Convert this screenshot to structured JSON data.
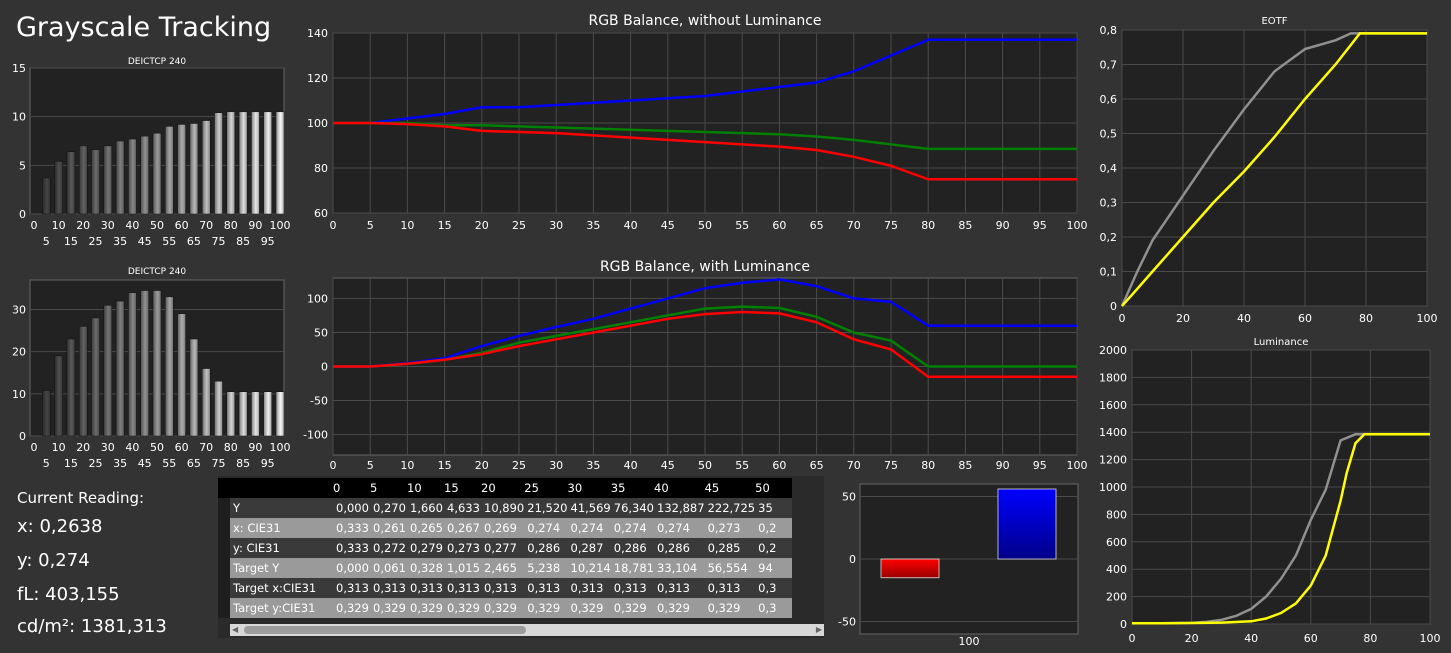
{
  "page_title": "Grayscale Tracking",
  "current_reading": {
    "label": "Current Reading:",
    "x": "x: 0,2638",
    "y": "y: 0,274",
    "fl": "fL: 403,155",
    "cdm2": "cd/m²: 1381,313"
  },
  "colors": {
    "red": "#ff0000",
    "green": "#008000",
    "blue": "#0000ff",
    "yellow": "#ffff00",
    "gray": "#909090",
    "plot_bg": "#222222",
    "grid": "#4a4a4a"
  },
  "chart_data": [
    {
      "id": "deictcp-top",
      "type": "bar",
      "title": "DEICTCP 240",
      "x": [
        5,
        10,
        15,
        20,
        25,
        30,
        35,
        40,
        45,
        50,
        55,
        60,
        65,
        70,
        75,
        80,
        85,
        90,
        95,
        100
      ],
      "values": [
        3.7,
        5.4,
        6.4,
        7.0,
        6.6,
        7.0,
        7.5,
        7.7,
        8.0,
        8.3,
        9.0,
        9.2,
        9.3,
        9.6,
        10.4,
        10.5,
        10.5,
        10.5,
        10.5,
        10.5
      ],
      "ylim": [
        0,
        15
      ],
      "yticks": [
        0,
        5,
        10,
        15
      ],
      "xticks_top": [
        "0",
        "10",
        "20",
        "30",
        "40",
        "50",
        "60",
        "70",
        "80",
        "90",
        "100"
      ],
      "xticks_bottom": [
        "5",
        "15",
        "25",
        "35",
        "45",
        "55",
        "65",
        "75",
        "85",
        "95"
      ]
    },
    {
      "id": "deictcp-bottom",
      "type": "bar",
      "title": "DEICTCP 240",
      "x": [
        5,
        10,
        15,
        20,
        25,
        30,
        35,
        40,
        45,
        50,
        55,
        60,
        65,
        70,
        75,
        80,
        85,
        90,
        95,
        100
      ],
      "values": [
        10.8,
        19,
        23,
        26,
        28,
        31,
        32,
        34,
        34.5,
        34.5,
        33,
        29,
        23,
        16,
        13,
        10.5,
        10.5,
        10.5,
        10.5,
        10.5
      ],
      "ylim": [
        0,
        37
      ],
      "yticks": [
        0,
        10,
        20,
        30
      ],
      "xticks_top": [
        "0",
        "10",
        "20",
        "30",
        "40",
        "50",
        "60",
        "70",
        "80",
        "90",
        "100"
      ],
      "xticks_bottom": [
        "5",
        "15",
        "25",
        "35",
        "45",
        "55",
        "65",
        "75",
        "85",
        "95"
      ]
    },
    {
      "id": "rgb-balance-without",
      "type": "line",
      "title": "RGB Balance, without Luminance",
      "x": [
        0,
        5,
        10,
        15,
        20,
        25,
        30,
        35,
        40,
        45,
        50,
        55,
        60,
        65,
        70,
        75,
        80,
        85,
        90,
        95,
        100
      ],
      "xlim": [
        0,
        100
      ],
      "ylim": [
        60,
        140
      ],
      "yticks": [
        60,
        80,
        100,
        120,
        140
      ],
      "xticks": [
        0,
        5,
        10,
        15,
        20,
        25,
        30,
        35,
        40,
        45,
        50,
        55,
        60,
        65,
        70,
        75,
        80,
        85,
        90,
        95,
        100
      ],
      "series": [
        {
          "color": "#0000ff",
          "values": [
            100,
            100,
            102,
            104,
            107,
            107,
            108,
            109,
            110,
            111,
            112,
            114,
            116,
            118,
            123,
            130,
            137,
            137,
            137,
            137,
            137
          ]
        },
        {
          "color": "#008000",
          "values": [
            100,
            100,
            100,
            99,
            99,
            98.5,
            98,
            97.5,
            97,
            96.5,
            96,
            95.5,
            95,
            94,
            92.5,
            90.5,
            88.5,
            88.5,
            88.5,
            88.5,
            88.5
          ]
        },
        {
          "color": "#ff0000",
          "values": [
            100,
            100,
            99.5,
            98.5,
            96.5,
            96,
            95.5,
            94.5,
            93.5,
            92.5,
            91.5,
            90.5,
            89.5,
            88,
            85,
            81,
            75,
            75,
            75,
            75,
            75
          ]
        }
      ]
    },
    {
      "id": "rgb-balance-with",
      "type": "line",
      "title": "RGB Balance, with Luminance",
      "x": [
        0,
        5,
        10,
        15,
        20,
        25,
        30,
        35,
        40,
        45,
        50,
        55,
        60,
        65,
        70,
        75,
        80,
        85,
        90,
        95,
        100
      ],
      "xlim": [
        0,
        100
      ],
      "ylim": [
        -130,
        130
      ],
      "yticks": [
        -100,
        -50,
        0,
        50,
        100
      ],
      "xticks": [
        0,
        5,
        10,
        15,
        20,
        25,
        30,
        35,
        40,
        45,
        50,
        55,
        60,
        65,
        70,
        75,
        80,
        85,
        90,
        95,
        100
      ],
      "series": [
        {
          "color": "#0000ff",
          "values": [
            0,
            0,
            5,
            12,
            30,
            45,
            58,
            70,
            85,
            100,
            115,
            123,
            128,
            118,
            100,
            95,
            60,
            60,
            60,
            60,
            60
          ]
        },
        {
          "color": "#008000",
          "values": [
            0,
            0,
            4,
            10,
            20,
            35,
            45,
            55,
            65,
            75,
            85,
            88,
            86,
            73,
            50,
            38,
            0,
            0,
            0,
            0,
            0
          ]
        },
        {
          "color": "#ff0000",
          "values": [
            0,
            0,
            4,
            10,
            18,
            30,
            40,
            50,
            60,
            70,
            77,
            80,
            78,
            65,
            40,
            25,
            -15,
            -15,
            -15,
            -15,
            -15
          ]
        }
      ]
    },
    {
      "id": "eotf",
      "type": "line",
      "title": "EOTF",
      "xlim": [
        0,
        100
      ],
      "ylim": [
        0,
        0.8
      ],
      "yticks": [
        "0",
        "0,1",
        "0,2",
        "0,3",
        "0,4",
        "0,5",
        "0,6",
        "0,7",
        "0,8"
      ],
      "xticks": [
        0,
        20,
        40,
        60,
        80,
        100
      ],
      "series": [
        {
          "color": "#909090",
          "x": [
            0,
            5,
            10,
            20,
            30,
            40,
            50,
            60,
            70,
            75,
            80,
            100
          ],
          "values": [
            0,
            0.1,
            0.19,
            0.32,
            0.45,
            0.57,
            0.68,
            0.745,
            0.77,
            0.79,
            0.79,
            0.79
          ]
        },
        {
          "color": "#ffff00",
          "x": [
            0,
            5,
            10,
            20,
            30,
            40,
            50,
            60,
            70,
            78,
            80,
            100
          ],
          "values": [
            0,
            0.05,
            0.1,
            0.2,
            0.3,
            0.39,
            0.49,
            0.6,
            0.7,
            0.79,
            0.79,
            0.79
          ]
        }
      ]
    },
    {
      "id": "luminance",
      "type": "line",
      "title": "Luminance",
      "xlim": [
        0,
        100
      ],
      "ylim": [
        0,
        2000
      ],
      "yticks": [
        0,
        200,
        400,
        600,
        800,
        1000,
        1200,
        1400,
        1600,
        1800,
        2000
      ],
      "xticks": [
        0,
        20,
        40,
        60,
        80,
        100
      ],
      "series": [
        {
          "color": "#909090",
          "x": [
            0,
            10,
            20,
            25,
            30,
            35,
            40,
            45,
            50,
            55,
            60,
            65,
            70,
            75,
            78,
            80,
            100
          ],
          "values": [
            5,
            6,
            8,
            15,
            30,
            60,
            110,
            200,
            330,
            500,
            760,
            980,
            1340,
            1385,
            1385,
            1385,
            1385
          ]
        },
        {
          "color": "#ffff00",
          "x": [
            0,
            10,
            20,
            30,
            40,
            45,
            50,
            55,
            60,
            65,
            70,
            72,
            75,
            78,
            80,
            100
          ],
          "values": [
            5,
            6,
            7,
            10,
            20,
            40,
            80,
            150,
            280,
            500,
            900,
            1100,
            1320,
            1385,
            1385,
            1385
          ]
        }
      ]
    },
    {
      "id": "rgb-bars",
      "type": "bar",
      "categories": [
        "100"
      ],
      "ylim": [
        -60,
        60
      ],
      "yticks": [
        -50,
        0,
        50
      ],
      "series": [
        {
          "color": "#ff0000",
          "values": [
            -15
          ]
        },
        {
          "color": "#0000ff",
          "values": [
            56
          ]
        }
      ]
    }
  ],
  "table": {
    "columns": [
      "0",
      "5",
      "10",
      "15",
      "20",
      "25",
      "30",
      "35",
      "40",
      "45",
      "50"
    ],
    "rows": [
      {
        "label": "Y",
        "values": [
          "0,000",
          "0,270",
          "1,660",
          "4,633",
          "10,890",
          "21,520",
          "41,569",
          "76,340",
          "132,887",
          "222,725",
          "35"
        ]
      },
      {
        "label": "x: CIE31",
        "values": [
          "0,333",
          "0,261",
          "0,265",
          "0,267",
          "0,269",
          "0,274",
          "0,274",
          "0,274",
          "0,274",
          "0,273",
          "0,2"
        ]
      },
      {
        "label": "y: CIE31",
        "values": [
          "0,333",
          "0,272",
          "0,279",
          "0,273",
          "0,277",
          "0,286",
          "0,287",
          "0,286",
          "0,286",
          "0,285",
          "0,2"
        ]
      },
      {
        "label": "Target Y",
        "values": [
          "0,000",
          "0,061",
          "0,328",
          "1,015",
          "2,465",
          "5,238",
          "10,214",
          "18,781",
          "33,104",
          "56,554",
          "94"
        ]
      },
      {
        "label": "Target x:CIE31",
        "values": [
          "0,313",
          "0,313",
          "0,313",
          "0,313",
          "0,313",
          "0,313",
          "0,313",
          "0,313",
          "0,313",
          "0,313",
          "0,3"
        ]
      },
      {
        "label": "Target y:CIE31",
        "values": [
          "0,329",
          "0,329",
          "0,329",
          "0,329",
          "0,329",
          "0,329",
          "0,329",
          "0,329",
          "0,329",
          "0,329",
          "0,3"
        ]
      }
    ]
  }
}
